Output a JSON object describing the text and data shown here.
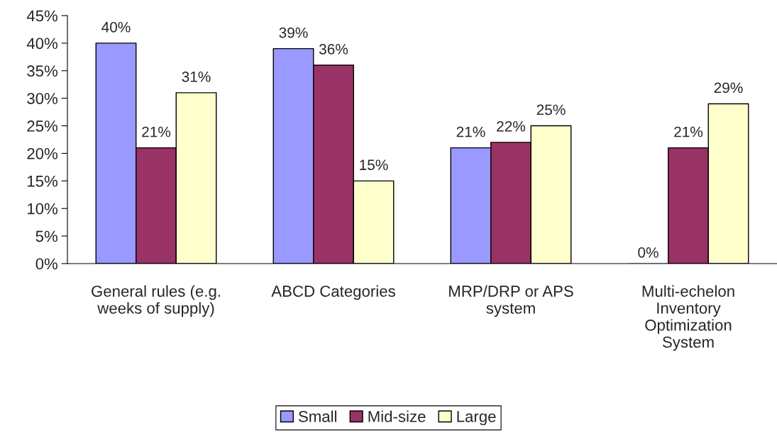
{
  "chart_data": {
    "type": "bar",
    "categories": [
      "General rules (e.g.\nweeks of supply)",
      "ABCD Categories",
      "MRP/DRP or APS\nsystem",
      "Multi-echelon\nInventory\nOptimization\nSystem"
    ],
    "series": [
      {
        "name": "Small",
        "color": "#9999ff",
        "values": [
          40,
          39,
          21,
          0
        ],
        "value_labels": [
          "40%",
          "39%",
          "21%",
          "0%"
        ]
      },
      {
        "name": "Mid-size",
        "color": "#993366",
        "values": [
          21,
          36,
          22,
          21
        ],
        "value_labels": [
          "21%",
          "36%",
          "22%",
          "21%"
        ]
      },
      {
        "name": "Large",
        "color": "#ffffcc",
        "values": [
          31,
          15,
          25,
          29
        ],
        "value_labels": [
          "31%",
          "15%",
          "25%",
          "29%"
        ]
      }
    ],
    "ylim": [
      0,
      45
    ],
    "yticks": [
      {
        "value": 0,
        "label": "0%"
      },
      {
        "value": 5,
        "label": "5%"
      },
      {
        "value": 10,
        "label": "10%"
      },
      {
        "value": 15,
        "label": "15%"
      },
      {
        "value": 20,
        "label": "20%"
      },
      {
        "value": 25,
        "label": "25%"
      },
      {
        "value": 30,
        "label": "30%"
      },
      {
        "value": 35,
        "label": "35%"
      },
      {
        "value": 40,
        "label": "40%"
      },
      {
        "value": 45,
        "label": "45%"
      }
    ],
    "grid": false,
    "legend": "bottom"
  }
}
